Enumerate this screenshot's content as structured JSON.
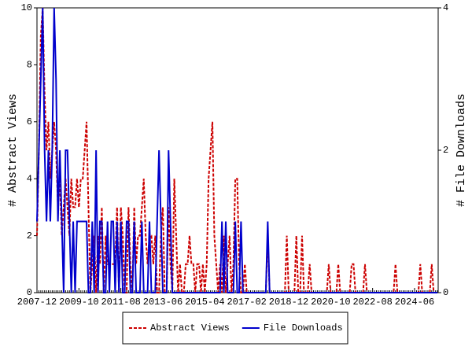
{
  "chart_data": {
    "type": "line",
    "y_label": "# Abstract Views",
    "y2_label": "# File Downloads",
    "categories": [
      "2007-12",
      null,
      null,
      null,
      null,
      null,
      null,
      null,
      null,
      null,
      null,
      null,
      null,
      null,
      null,
      null,
      null,
      null,
      null,
      null,
      null,
      null,
      "2009-10",
      null,
      null,
      null,
      null,
      null,
      null,
      null,
      null,
      null,
      null,
      null,
      null,
      null,
      null,
      null,
      null,
      null,
      null,
      null,
      null,
      null,
      "2011-08",
      null,
      null,
      null,
      null,
      null,
      null,
      null,
      null,
      null,
      null,
      null,
      null,
      null,
      null,
      null,
      null,
      null,
      null,
      null,
      null,
      null,
      "2013-06",
      null,
      null,
      null,
      null,
      null,
      null,
      null,
      null,
      null,
      null,
      null,
      null,
      null,
      null,
      null,
      null,
      null,
      null,
      null,
      null,
      null,
      "2015-04",
      null,
      null,
      null,
      null,
      null,
      null,
      null,
      null,
      null,
      null,
      null,
      null,
      null,
      null,
      null,
      null,
      null,
      null,
      null,
      null,
      null,
      "2017-02",
      null,
      null,
      null,
      null,
      null,
      null,
      null,
      null,
      null,
      null,
      null,
      null,
      null,
      null,
      null,
      null,
      null,
      null,
      null,
      null,
      null,
      "2018-12",
      null,
      null,
      null,
      null,
      null,
      null,
      null,
      null,
      null,
      null,
      null,
      null,
      null,
      null,
      null,
      null,
      null,
      null,
      null,
      null,
      null,
      "2020-10",
      null,
      null,
      null,
      null,
      null,
      null,
      null,
      null,
      null,
      null,
      null,
      null,
      null,
      null,
      null,
      null,
      null,
      null,
      null,
      null,
      null,
      "2022-08",
      null,
      null,
      null,
      null,
      null,
      null,
      null,
      null,
      null,
      null,
      null,
      null,
      null,
      null,
      null,
      null,
      null,
      null,
      null,
      null,
      null,
      "2024-06",
      null,
      null,
      null,
      null,
      null,
      null,
      null,
      null,
      null,
      null,
      null,
      null
    ],
    "series": [
      {
        "name": "Abstract Views",
        "color": "#cc0000",
        "dash": true,
        "values": [
          2,
          5,
          9,
          10,
          7,
          5,
          6,
          4,
          5,
          6,
          5,
          3,
          4,
          2,
          3,
          4,
          3,
          2,
          4,
          3,
          3,
          4,
          3,
          4,
          4,
          5,
          6,
          3,
          0,
          1,
          2,
          0,
          2,
          1,
          3,
          0,
          2,
          1,
          1,
          1,
          1,
          1,
          3,
          0,
          3,
          2,
          0,
          0,
          3,
          1,
          0,
          3,
          1,
          2,
          2,
          3,
          4,
          2,
          1,
          2,
          2,
          1,
          2,
          0,
          0,
          2,
          3,
          0,
          0,
          3,
          1,
          0,
          4,
          2,
          0,
          1,
          0,
          0,
          1,
          1,
          2,
          1,
          1,
          0,
          1,
          1,
          0,
          1,
          0,
          1,
          4,
          5,
          6,
          2,
          1,
          0,
          1,
          0,
          2,
          0,
          1,
          2,
          0,
          1,
          4,
          4,
          1,
          0,
          0,
          1,
          0,
          0,
          0,
          0,
          0,
          0,
          0,
          0,
          0,
          0,
          0,
          2,
          0,
          0,
          0,
          0,
          0,
          0,
          0,
          0,
          0,
          2,
          0,
          0,
          0,
          0,
          2,
          0,
          0,
          2,
          0,
          0,
          0,
          1,
          0,
          0,
          0,
          0,
          0,
          0,
          0,
          0,
          0,
          1,
          0,
          0,
          0,
          0,
          1,
          0,
          0,
          0,
          0,
          0,
          0,
          1,
          1,
          0,
          0,
          0,
          0,
          0,
          1,
          0,
          0,
          0,
          0,
          0,
          0,
          0,
          0,
          0,
          0,
          0,
          0,
          0,
          0,
          0,
          1,
          0,
          0,
          0,
          0,
          0,
          0,
          0,
          0,
          0,
          0,
          0,
          0,
          1,
          0,
          0,
          0,
          0,
          0,
          1,
          0,
          0,
          0
        ]
      },
      {
        "name": "File Downloads",
        "color": "#0000cc",
        "axis": "y2",
        "values": [
          1,
          2,
          3,
          4,
          2,
          1,
          2,
          1,
          2,
          4,
          3,
          1,
          2,
          1,
          0,
          2,
          2,
          1,
          0,
          1,
          0,
          1,
          1,
          1,
          1,
          1,
          1,
          0,
          0,
          1,
          0,
          2,
          0,
          1,
          1,
          0,
          0,
          1,
          0,
          1,
          1,
          0,
          1,
          0,
          1,
          0,
          0,
          1,
          1,
          0,
          0,
          1,
          0,
          0,
          0,
          1,
          0,
          0,
          0,
          1,
          0,
          0,
          0,
          1,
          2,
          1,
          0,
          0,
          0,
          2,
          1,
          0,
          0,
          0,
          0,
          0,
          0,
          0,
          0,
          0,
          0,
          0,
          0,
          0,
          0,
          0,
          0,
          0,
          0,
          0,
          0,
          0,
          0,
          0,
          0,
          0,
          0,
          1,
          0,
          1,
          0,
          0,
          0,
          0,
          1,
          0,
          0,
          1,
          0,
          0,
          0,
          0,
          0,
          0,
          0,
          0,
          0,
          0,
          0,
          0,
          0,
          1,
          0,
          0,
          0,
          0,
          0,
          0,
          0,
          0,
          0,
          0,
          0,
          0,
          0,
          0,
          0,
          0,
          0,
          0,
          0,
          0,
          0,
          0,
          0,
          0,
          0,
          0,
          0,
          0,
          0,
          0,
          0,
          0,
          0,
          0,
          0,
          0,
          0,
          0,
          0,
          0,
          0,
          0,
          0,
          0,
          0,
          0,
          0,
          0,
          0,
          0,
          0,
          0,
          0,
          0,
          0,
          0,
          0,
          0,
          0,
          0,
          0,
          0,
          0,
          0,
          0,
          0,
          0,
          0,
          0,
          0,
          0,
          0,
          0,
          0,
          0,
          0,
          0,
          0,
          0,
          0,
          0,
          0,
          0,
          0,
          0,
          0,
          0,
          0,
          0
        ]
      }
    ],
    "ylim": [
      0,
      10
    ],
    "yticks": [
      0,
      2,
      4,
      6,
      8,
      10
    ],
    "y2lim": [
      0,
      4
    ],
    "y2ticks": [
      0,
      2,
      4
    ],
    "legend": "bottom"
  }
}
